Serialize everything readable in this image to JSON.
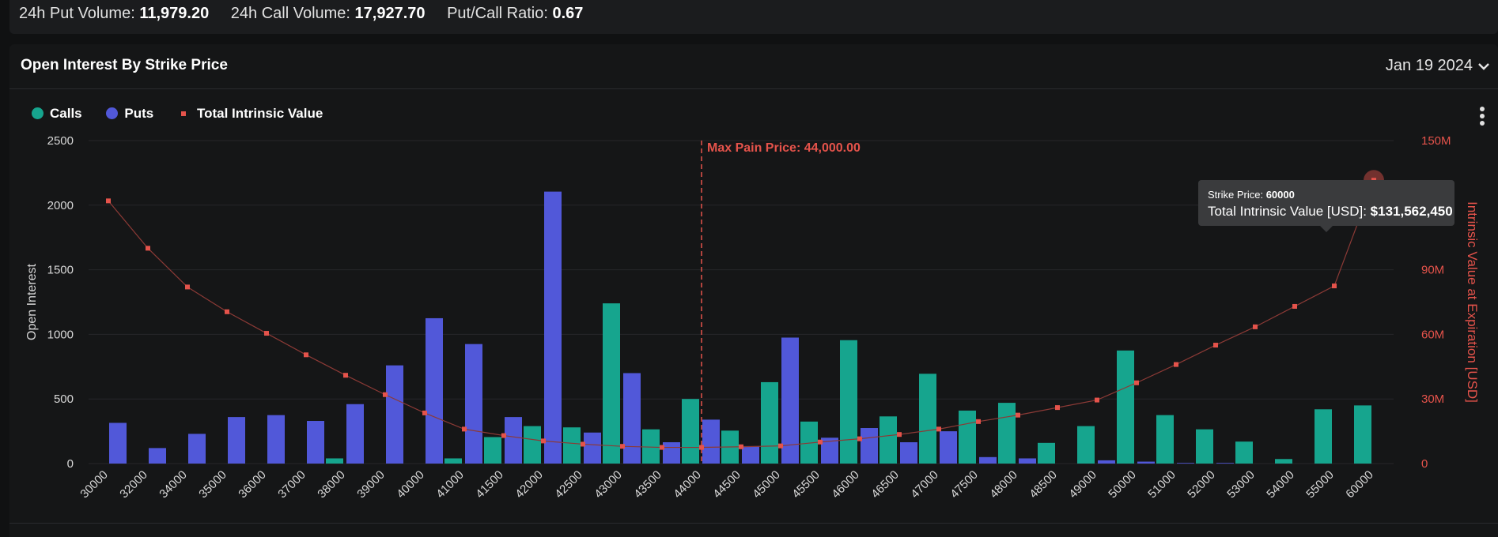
{
  "summary": {
    "put_volume_label": "24h Put Volume:",
    "put_volume_value": "11,979.20",
    "call_volume_label": "24h Call Volume:",
    "call_volume_value": "17,927.70",
    "ratio_label": "Put/Call Ratio:",
    "ratio_value": "0.67"
  },
  "panel": {
    "title": "Open Interest By Strike Price",
    "expiry": "Jan 19 2024"
  },
  "legend": {
    "calls": "Calls",
    "puts": "Puts",
    "intrinsic": "Total Intrinsic Value"
  },
  "tooltip": {
    "strike_label": "Strike Price:",
    "strike_value": "60000",
    "intrinsic_label": "Total Intrinsic Value [USD]:",
    "intrinsic_value": "$131,562,450"
  },
  "colors": {
    "calls": "#16a58e",
    "puts": "#5158d9",
    "intrinsic": "#e5534b",
    "max_pain": "#e5534b"
  },
  "chart_data": {
    "type": "bar",
    "title": "Open Interest By Strike Price",
    "ylabel": "Open Interest",
    "y2label": "Intrinsic Value at Expiration [USD]",
    "ylim": [
      0,
      2500
    ],
    "yticks": [
      0,
      500,
      1000,
      1500,
      2000,
      2500
    ],
    "y2lim": [
      0,
      150000000
    ],
    "y2ticks": [
      0,
      30000000,
      60000000,
      90000000,
      120000000,
      150000000
    ],
    "y2tick_labels": [
      "0",
      "30M",
      "60M",
      "90M",
      "120M",
      "150M"
    ],
    "categories": [
      "30000",
      "32000",
      "34000",
      "35000",
      "36000",
      "37000",
      "38000",
      "39000",
      "40000",
      "41000",
      "41500",
      "42000",
      "42500",
      "43000",
      "43500",
      "44000",
      "44500",
      "45000",
      "45500",
      "46000",
      "46500",
      "47000",
      "47500",
      "48000",
      "48500",
      "49000",
      "50000",
      "51000",
      "52000",
      "53000",
      "54000",
      "55000",
      "60000"
    ],
    "series": [
      {
        "name": "Calls",
        "axis": "left",
        "values": [
          0,
          0,
          0,
          0,
          0,
          0,
          40,
          0,
          0,
          40,
          205,
          290,
          280,
          1240,
          265,
          500,
          255,
          630,
          325,
          955,
          365,
          695,
          410,
          470,
          160,
          290,
          875,
          375,
          265,
          170,
          35,
          420,
          450
        ]
      },
      {
        "name": "Puts",
        "axis": "left",
        "values": [
          315,
          120,
          230,
          360,
          375,
          330,
          460,
          760,
          1125,
          925,
          360,
          2105,
          240,
          700,
          165,
          340,
          135,
          975,
          200,
          275,
          165,
          250,
          50,
          40,
          0,
          25,
          15,
          5,
          5,
          0,
          0,
          0,
          0
        ]
      },
      {
        "name": "Total Intrinsic Value",
        "axis": "right",
        "type": "line",
        "values": [
          122000000,
          100000000,
          82000000,
          70500000,
          60500000,
          50500000,
          41000000,
          32000000,
          23500000,
          16000000,
          13000000,
          10500000,
          9000000,
          8000000,
          7500000,
          7500000,
          7800000,
          8200000,
          10000000,
          11500000,
          13500000,
          16000000,
          19500000,
          22500000,
          26000000,
          29500000,
          37500000,
          46000000,
          55000000,
          63500000,
          73000000,
          82500000,
          131562450
        ]
      }
    ],
    "annotations": [
      {
        "type": "vline",
        "category": "44000",
        "label": "Max Pain Price: 44,000.00"
      }
    ]
  }
}
